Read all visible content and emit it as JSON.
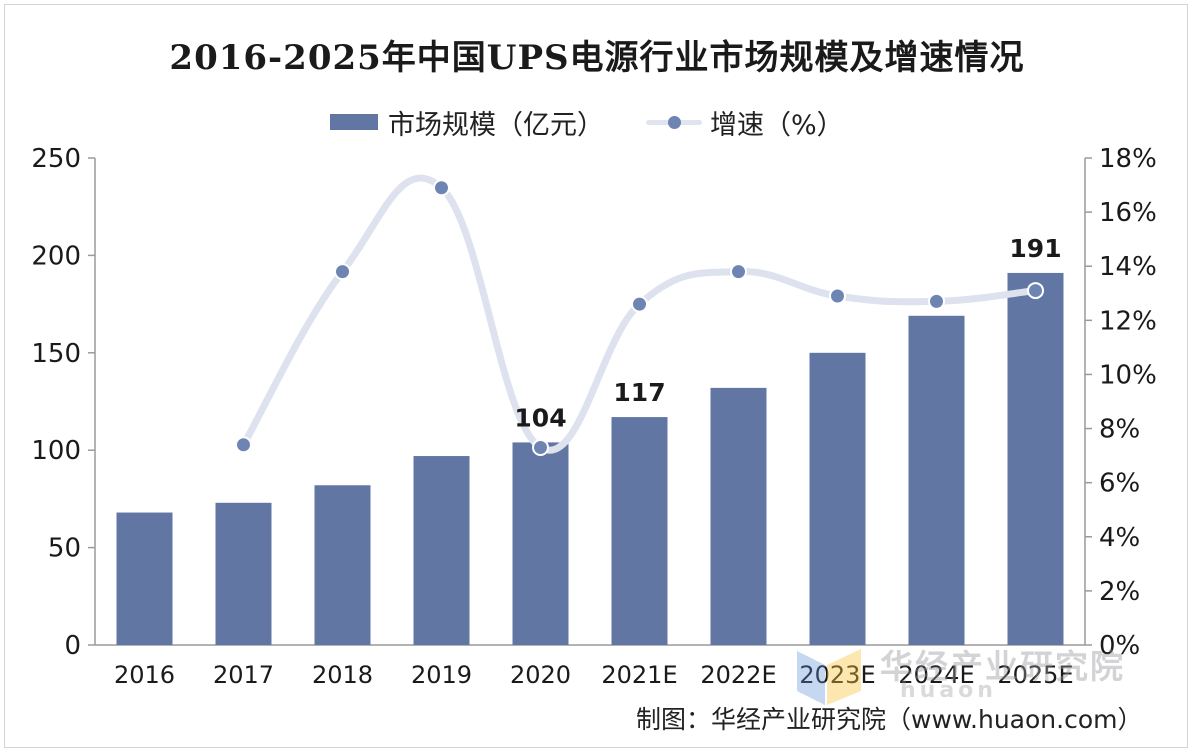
{
  "chart_data": {
    "type": "bar",
    "title": "2016-2025年中国UPS电源行业市场规模及增速情况",
    "categories": [
      "2016",
      "2017",
      "2018",
      "2019",
      "2020",
      "2021E",
      "2022E",
      "2023E",
      "2024E",
      "2025E"
    ],
    "series": [
      {
        "name": "市场规模（亿元）",
        "type": "bar",
        "axis": "left",
        "values": [
          68,
          73,
          82,
          97,
          104,
          117,
          132,
          150,
          169,
          191
        ]
      },
      {
        "name": "增速（%）",
        "type": "line",
        "axis": "right",
        "values": [
          null,
          7.4,
          13.8,
          16.9,
          7.3,
          12.6,
          13.8,
          12.9,
          12.7,
          13.1
        ]
      }
    ],
    "data_labels": {
      "2020": "104",
      "2021E": "117",
      "2025E": "191"
    },
    "y_left": {
      "min": 0,
      "max": 250,
      "step": 50,
      "ticks": [
        "0",
        "50",
        "100",
        "150",
        "200",
        "250"
      ]
    },
    "y_right": {
      "min": 0,
      "max": 18,
      "step": 2,
      "ticks": [
        "0%",
        "2%",
        "4%",
        "6%",
        "8%",
        "10%",
        "12%",
        "14%",
        "16%",
        "18%"
      ]
    },
    "legend_position": "top-center",
    "grid": false
  },
  "legend": {
    "bar_label": "市场规模（亿元）",
    "line_label": "增速（%）"
  },
  "source_text": "制图：华经产业研究院（www.huaon.com）",
  "watermark": {
    "cn": "华经产业研究院",
    "en": "huaon"
  },
  "colors": {
    "bar": "#6276a4",
    "line": "#dde2ee",
    "point": "#6e85b4",
    "axis": "#9a9a9a",
    "text": "#1a1a1a"
  }
}
